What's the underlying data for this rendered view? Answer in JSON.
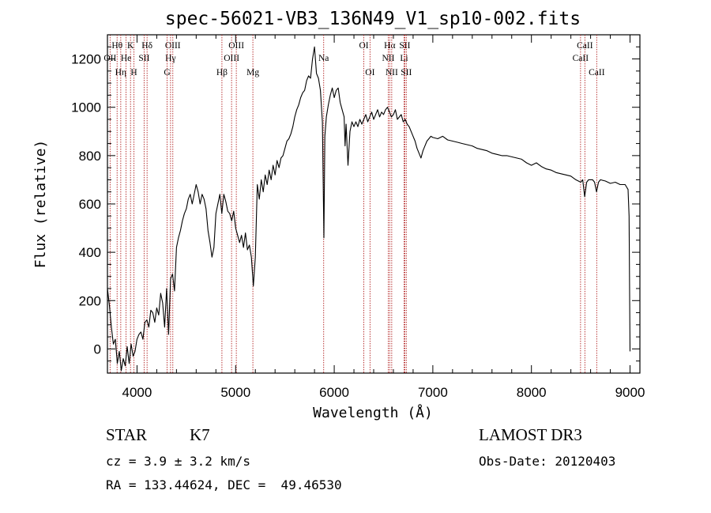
{
  "colors": {
    "spectrum": "#000000",
    "line_marker": "#b22222",
    "axis": "#000000",
    "background": "#ffffff"
  },
  "chart_data": {
    "type": "line",
    "title": "spec-56021-VB3_136N49_V1_sp10-002.fits",
    "xlabel": "Wavelength (Å)",
    "ylabel": "Flux (relative)",
    "xlim": [
      3700,
      9100
    ],
    "ylim": [
      -100,
      1300
    ],
    "x_ticks": [
      4000,
      5000,
      6000,
      7000,
      8000,
      9000
    ],
    "y_ticks": [
      0,
      200,
      400,
      600,
      800,
      1000,
      1200
    ],
    "series": [
      {
        "name": "flux",
        "points": [
          [
            3700,
            250
          ],
          [
            3720,
            180
          ],
          [
            3740,
            90
          ],
          [
            3760,
            20
          ],
          [
            3780,
            40
          ],
          [
            3800,
            -60
          ],
          [
            3820,
            -10
          ],
          [
            3840,
            -90
          ],
          [
            3860,
            -40
          ],
          [
            3880,
            -70
          ],
          [
            3900,
            10
          ],
          [
            3920,
            -60
          ],
          [
            3940,
            20
          ],
          [
            3960,
            -30
          ],
          [
            3980,
            -10
          ],
          [
            4000,
            40
          ],
          [
            4020,
            60
          ],
          [
            4040,
            70
          ],
          [
            4060,
            40
          ],
          [
            4080,
            110
          ],
          [
            4100,
            120
          ],
          [
            4120,
            90
          ],
          [
            4140,
            160
          ],
          [
            4160,
            150
          ],
          [
            4180,
            110
          ],
          [
            4200,
            170
          ],
          [
            4220,
            140
          ],
          [
            4240,
            230
          ],
          [
            4260,
            190
          ],
          [
            4280,
            90
          ],
          [
            4300,
            250
          ],
          [
            4320,
            60
          ],
          [
            4340,
            290
          ],
          [
            4360,
            310
          ],
          [
            4380,
            240
          ],
          [
            4400,
            420
          ],
          [
            4420,
            460
          ],
          [
            4440,
            490
          ],
          [
            4460,
            530
          ],
          [
            4480,
            560
          ],
          [
            4500,
            580
          ],
          [
            4520,
            620
          ],
          [
            4540,
            640
          ],
          [
            4560,
            600
          ],
          [
            4580,
            640
          ],
          [
            4600,
            680
          ],
          [
            4620,
            650
          ],
          [
            4640,
            600
          ],
          [
            4660,
            640
          ],
          [
            4680,
            620
          ],
          [
            4700,
            580
          ],
          [
            4720,
            490
          ],
          [
            4740,
            440
          ],
          [
            4760,
            380
          ],
          [
            4780,
            420
          ],
          [
            4800,
            560
          ],
          [
            4820,
            600
          ],
          [
            4840,
            640
          ],
          [
            4860,
            560
          ],
          [
            4880,
            640
          ],
          [
            4900,
            610
          ],
          [
            4920,
            570
          ],
          [
            4940,
            560
          ],
          [
            4960,
            530
          ],
          [
            4980,
            570
          ],
          [
            5000,
            500
          ],
          [
            5020,
            470
          ],
          [
            5040,
            440
          ],
          [
            5060,
            470
          ],
          [
            5080,
            420
          ],
          [
            5100,
            480
          ],
          [
            5120,
            410
          ],
          [
            5140,
            430
          ],
          [
            5160,
            380
          ],
          [
            5180,
            260
          ],
          [
            5200,
            380
          ],
          [
            5220,
            680
          ],
          [
            5240,
            620
          ],
          [
            5260,
            700
          ],
          [
            5280,
            650
          ],
          [
            5300,
            720
          ],
          [
            5320,
            680
          ],
          [
            5340,
            740
          ],
          [
            5360,
            700
          ],
          [
            5380,
            760
          ],
          [
            5400,
            720
          ],
          [
            5420,
            780
          ],
          [
            5440,
            750
          ],
          [
            5460,
            790
          ],
          [
            5480,
            800
          ],
          [
            5500,
            830
          ],
          [
            5520,
            860
          ],
          [
            5540,
            870
          ],
          [
            5560,
            890
          ],
          [
            5580,
            920
          ],
          [
            5600,
            960
          ],
          [
            5620,
            990
          ],
          [
            5640,
            1010
          ],
          [
            5660,
            1040
          ],
          [
            5680,
            1060
          ],
          [
            5700,
            1070
          ],
          [
            5720,
            1110
          ],
          [
            5740,
            1130
          ],
          [
            5760,
            1120
          ],
          [
            5780,
            1200
          ],
          [
            5800,
            1250
          ],
          [
            5820,
            1140
          ],
          [
            5840,
            1120
          ],
          [
            5860,
            1070
          ],
          [
            5880,
            940
          ],
          [
            5895,
            460
          ],
          [
            5905,
            880
          ],
          [
            5920,
            960
          ],
          [
            5940,
            1010
          ],
          [
            5960,
            1050
          ],
          [
            5980,
            1080
          ],
          [
            6000,
            1040
          ],
          [
            6020,
            1070
          ],
          [
            6040,
            1080
          ],
          [
            6060,
            1020
          ],
          [
            6080,
            990
          ],
          [
            6100,
            960
          ],
          [
            6110,
            840
          ],
          [
            6120,
            930
          ],
          [
            6140,
            760
          ],
          [
            6160,
            900
          ],
          [
            6180,
            940
          ],
          [
            6200,
            920
          ],
          [
            6220,
            940
          ],
          [
            6240,
            920
          ],
          [
            6260,
            950
          ],
          [
            6280,
            930
          ],
          [
            6300,
            950
          ],
          [
            6320,
            970
          ],
          [
            6340,
            940
          ],
          [
            6360,
            960
          ],
          [
            6380,
            980
          ],
          [
            6400,
            950
          ],
          [
            6420,
            970
          ],
          [
            6440,
            990
          ],
          [
            6460,
            960
          ],
          [
            6480,
            980
          ],
          [
            6500,
            970
          ],
          [
            6520,
            990
          ],
          [
            6540,
            1000
          ],
          [
            6560,
            980
          ],
          [
            6580,
            960
          ],
          [
            6600,
            970
          ],
          [
            6620,
            990
          ],
          [
            6640,
            950
          ],
          [
            6660,
            960
          ],
          [
            6680,
            970
          ],
          [
            6700,
            940
          ],
          [
            6720,
            950
          ],
          [
            6740,
            930
          ],
          [
            6760,
            920
          ],
          [
            6780,
            900
          ],
          [
            6800,
            880
          ],
          [
            6820,
            860
          ],
          [
            6840,
            830
          ],
          [
            6860,
            810
          ],
          [
            6880,
            790
          ],
          [
            6900,
            820
          ],
          [
            6920,
            840
          ],
          [
            6940,
            860
          ],
          [
            6960,
            870
          ],
          [
            6980,
            880
          ],
          [
            7000,
            875
          ],
          [
            7050,
            870
          ],
          [
            7100,
            880
          ],
          [
            7150,
            865
          ],
          [
            7200,
            860
          ],
          [
            7250,
            855
          ],
          [
            7300,
            850
          ],
          [
            7350,
            845
          ],
          [
            7400,
            840
          ],
          [
            7450,
            830
          ],
          [
            7500,
            825
          ],
          [
            7550,
            820
          ],
          [
            7600,
            810
          ],
          [
            7650,
            805
          ],
          [
            7700,
            800
          ],
          [
            7750,
            800
          ],
          [
            7800,
            795
          ],
          [
            7850,
            790
          ],
          [
            7900,
            785
          ],
          [
            7950,
            770
          ],
          [
            8000,
            760
          ],
          [
            8050,
            770
          ],
          [
            8100,
            755
          ],
          [
            8150,
            745
          ],
          [
            8200,
            740
          ],
          [
            8250,
            730
          ],
          [
            8300,
            725
          ],
          [
            8350,
            720
          ],
          [
            8400,
            715
          ],
          [
            8450,
            700
          ],
          [
            8500,
            690
          ],
          [
            8520,
            700
          ],
          [
            8540,
            630
          ],
          [
            8560,
            690
          ],
          [
            8580,
            700
          ],
          [
            8600,
            700
          ],
          [
            8620,
            700
          ],
          [
            8640,
            690
          ],
          [
            8660,
            650
          ],
          [
            8680,
            690
          ],
          [
            8700,
            700
          ],
          [
            8750,
            695
          ],
          [
            8800,
            685
          ],
          [
            8850,
            690
          ],
          [
            8900,
            680
          ],
          [
            8950,
            680
          ],
          [
            8980,
            660
          ],
          [
            8990,
            550
          ],
          [
            9000,
            -10
          ]
        ]
      }
    ],
    "line_markers": [
      {
        "label": "Hθ",
        "wavelength": 3798,
        "row": 1
      },
      {
        "label": "OII",
        "wavelength": 3727,
        "row": 2
      },
      {
        "label": "Hη",
        "wavelength": 3835,
        "row": 3
      },
      {
        "label": "He",
        "wavelength": 3889,
        "row": 2
      },
      {
        "label": "K",
        "wavelength": 3934,
        "row": 1
      },
      {
        "label": "H",
        "wavelength": 3969,
        "row": 3
      },
      {
        "label": "SII",
        "wavelength": 4072,
        "row": 2
      },
      {
        "label": "Hδ",
        "wavelength": 4102,
        "row": 1
      },
      {
        "label": "OIII",
        "wavelength": 4363,
        "row": 1
      },
      {
        "label": "Hγ",
        "wavelength": 4340,
        "row": 2
      },
      {
        "label": "G",
        "wavelength": 4305,
        "row": 3
      },
      {
        "label": "Hβ",
        "wavelength": 4861,
        "row": 3
      },
      {
        "label": "OIII",
        "wavelength": 5007,
        "row": 1
      },
      {
        "label": "OIII",
        "wavelength": 4959,
        "row": 2
      },
      {
        "label": "Mg",
        "wavelength": 5175,
        "row": 3
      },
      {
        "label": "Na",
        "wavelength": 5893,
        "row": 2
      },
      {
        "label": "OI",
        "wavelength": 6300,
        "row": 1
      },
      {
        "label": "OI",
        "wavelength": 6363,
        "row": 3
      },
      {
        "label": "Hα",
        "wavelength": 6563,
        "row": 1
      },
      {
        "label": "NII",
        "wavelength": 6548,
        "row": 2
      },
      {
        "label": "NII",
        "wavelength": 6583,
        "row": 3
      },
      {
        "label": "SII",
        "wavelength": 6716,
        "row": 1
      },
      {
        "label": "Li",
        "wavelength": 6708,
        "row": 2
      },
      {
        "label": "SII",
        "wavelength": 6731,
        "row": 3
      },
      {
        "label": "CaII",
        "wavelength": 8542,
        "row": 1
      },
      {
        "label": "CaII",
        "wavelength": 8498,
        "row": 2
      },
      {
        "label": "CaII",
        "wavelength": 8662,
        "row": 3
      }
    ]
  },
  "info": {
    "object_class": "STAR",
    "subclass": "K7",
    "cz": "cz = 3.9 ± 3.2 km/s",
    "coords": "RA = 133.44624, DEC =  49.46530",
    "survey": "LAMOST DR3",
    "obs_date": "Obs-Date: 20120403"
  }
}
